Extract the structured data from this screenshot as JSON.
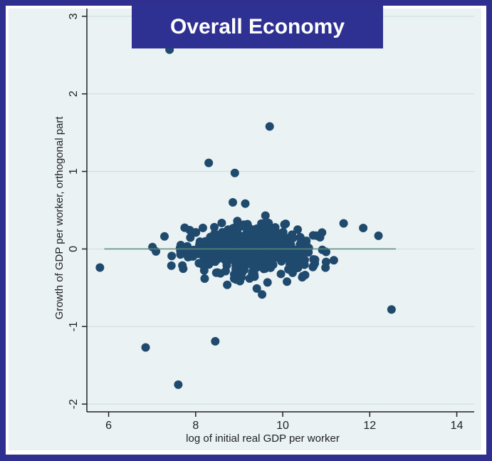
{
  "title_box": {
    "text": "Overall Economy"
  },
  "colors": {
    "slide": "#2f2f8f",
    "title_bg": "#2e3192",
    "point": "#1f4a6e",
    "fit_line": "#5b8a7a",
    "plot_bg": "#eaf2f3"
  },
  "chart_data": {
    "type": "scatter",
    "title": "Overall Economy",
    "xlabel": "log of initial real GDP per worker",
    "ylabel": "Growth of GDP per worker, orthogonal part",
    "xlim": [
      5.5,
      14.4
    ],
    "ylim": [
      -2.1,
      3.1
    ],
    "xticks": [
      6,
      8,
      10,
      12,
      14
    ],
    "yticks": [
      -2,
      -1,
      0,
      1,
      2,
      3
    ],
    "xtick_labels": [
      "6",
      "8",
      "10",
      "12",
      "14"
    ],
    "ytick_labels": [
      "-2",
      "-1",
      "0",
      "1",
      "2",
      "3"
    ],
    "grid": "horizontal",
    "fit_line": {
      "x": [
        5.9,
        12.6
      ],
      "y": [
        0,
        0
      ]
    },
    "highlight_points": [
      {
        "x": 7.4,
        "y": 2.57
      },
      {
        "x": 9.7,
        "y": 1.58
      },
      {
        "x": 8.3,
        "y": 1.11
      },
      {
        "x": 8.9,
        "y": 0.98
      },
      {
        "x": 5.8,
        "y": -0.24
      },
      {
        "x": 6.85,
        "y": -1.27
      },
      {
        "x": 8.45,
        "y": -1.19
      },
      {
        "x": 7.6,
        "y": -1.75
      },
      {
        "x": 12.5,
        "y": -0.78
      },
      {
        "x": 12.2,
        "y": 0.17
      },
      {
        "x": 11.85,
        "y": 0.27
      },
      {
        "x": 11.4,
        "y": 0.33
      }
    ],
    "cluster": {
      "n": 520,
      "x_mean": 9.2,
      "x_sd": 1.3,
      "x_range": [
        6.4,
        11.6
      ],
      "y_sd": 0.27
    }
  }
}
